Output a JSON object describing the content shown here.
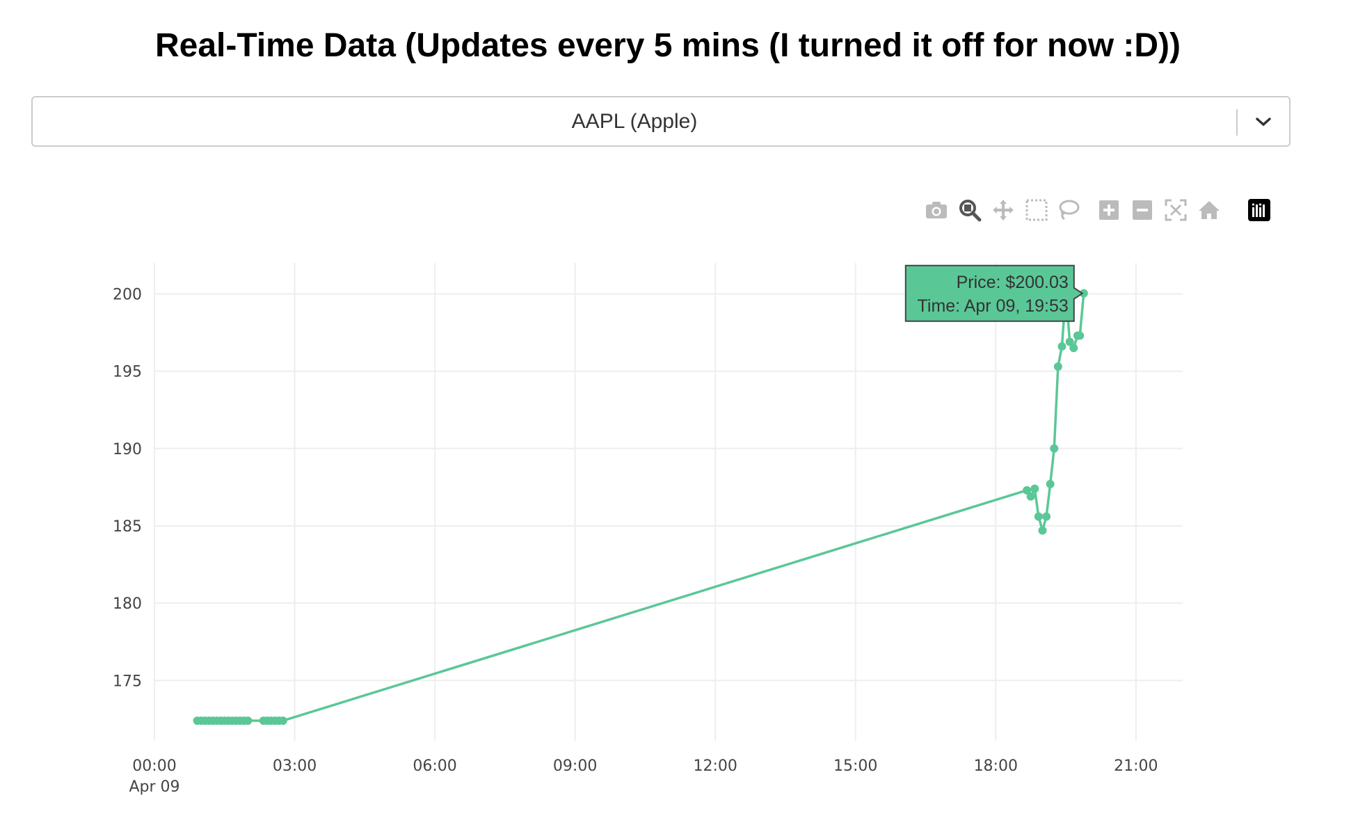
{
  "page": {
    "title": "Real-Time Data (Updates every 5 mins (I turned it off for now :D))"
  },
  "dropdown": {
    "selected": "AAPL (Apple)",
    "arrow_icon": "chevron-down-icon"
  },
  "modebar": {
    "buttons": [
      "camera-icon",
      "zoom-icon",
      "pan-icon",
      "box-select-icon",
      "lasso-select-icon",
      "zoom-in-icon",
      "zoom-out-icon",
      "autoscale-icon",
      "reset-axes-icon",
      "plotly-logo-icon"
    ]
  },
  "colors": {
    "series": "#5ac797",
    "grid": "#eeeeee",
    "tooltip_bg": "#5ac797",
    "tooltip_border": "#444444"
  },
  "chart_data": {
    "type": "line",
    "title": "",
    "xlabel": "",
    "ylabel": "",
    "x_date_label": "Apr 09",
    "x_ticks": [
      "00:00",
      "03:00",
      "06:00",
      "09:00",
      "12:00",
      "15:00",
      "18:00",
      "21:00"
    ],
    "y_ticks": [
      175,
      180,
      185,
      190,
      195,
      200
    ],
    "xlim": [
      "00:00",
      "22:00"
    ],
    "ylim": [
      171.1,
      202.0
    ],
    "grid": true,
    "legend": "none",
    "series": [
      {
        "x": [
          "00:55",
          "01:00",
          "01:05",
          "01:10",
          "01:15",
          "01:20",
          "01:25",
          "01:30",
          "01:35",
          "01:40",
          "01:45",
          "01:50",
          "01:55",
          "02:00",
          "02:20",
          "02:25",
          "02:30",
          "02:35",
          "02:40",
          "02:45",
          "18:40",
          "18:45",
          "18:50",
          "18:55",
          "19:00",
          "19:05",
          "19:10",
          "19:15",
          "19:20",
          "19:25",
          "19:30",
          "19:35",
          "19:40",
          "19:45",
          "19:48",
          "19:53"
        ],
        "y": [
          172.4,
          172.4,
          172.4,
          172.4,
          172.4,
          172.4,
          172.4,
          172.4,
          172.4,
          172.4,
          172.4,
          172.4,
          172.4,
          172.4,
          172.4,
          172.4,
          172.4,
          172.4,
          172.4,
          172.4,
          187.3,
          186.9,
          187.4,
          185.6,
          184.7,
          185.6,
          187.7,
          190.0,
          195.3,
          196.6,
          200.2,
          196.9,
          196.5,
          197.3,
          197.3,
          200.03
        ]
      }
    ],
    "hover": {
      "price_label": "Price: $200.03",
      "time_label": "Time: Apr 09, 19:53",
      "x": "19:53",
      "y": 200.03
    }
  }
}
